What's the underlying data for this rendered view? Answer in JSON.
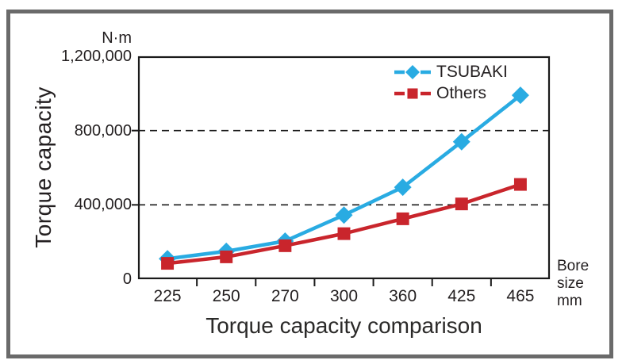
{
  "chart_data": {
    "type": "line",
    "title": "Torque capacity comparison",
    "ylabel": "Torque capacity",
    "y_unit": "N·m",
    "xlabel": "Bore size mm",
    "x_unit_lines": [
      "Bore",
      "size",
      "mm"
    ],
    "categories": [
      "225",
      "250",
      "270",
      "300",
      "360",
      "425",
      "465"
    ],
    "series": [
      {
        "name": "TSUBAKI",
        "color": "#29abe2",
        "marker": "diamond",
        "values": [
          110000,
          150000,
          205000,
          345000,
          495000,
          740000,
          990000
        ]
      },
      {
        "name": "Others",
        "color": "#c9252c",
        "marker": "square",
        "values": [
          85000,
          120000,
          180000,
          245000,
          325000,
          405000,
          510000
        ]
      }
    ],
    "ylim": [
      0,
      1200000
    ],
    "y_ticks": [
      {
        "value": 0,
        "label": "0"
      },
      {
        "value": 400000,
        "label": "400,000"
      },
      {
        "value": 800000,
        "label": "800,000"
      },
      {
        "value": 1200000,
        "label": "1,200,000"
      }
    ],
    "gridlines_at": [
      400000,
      800000
    ],
    "grid": "dashed horizontal gridlines at 400,000 and 800,000",
    "legend_position": "top-right inside plot",
    "colors": {
      "text": "#231f20",
      "plot_border": "#1a1a1a",
      "outer_frame": "#6a6a6a"
    }
  }
}
